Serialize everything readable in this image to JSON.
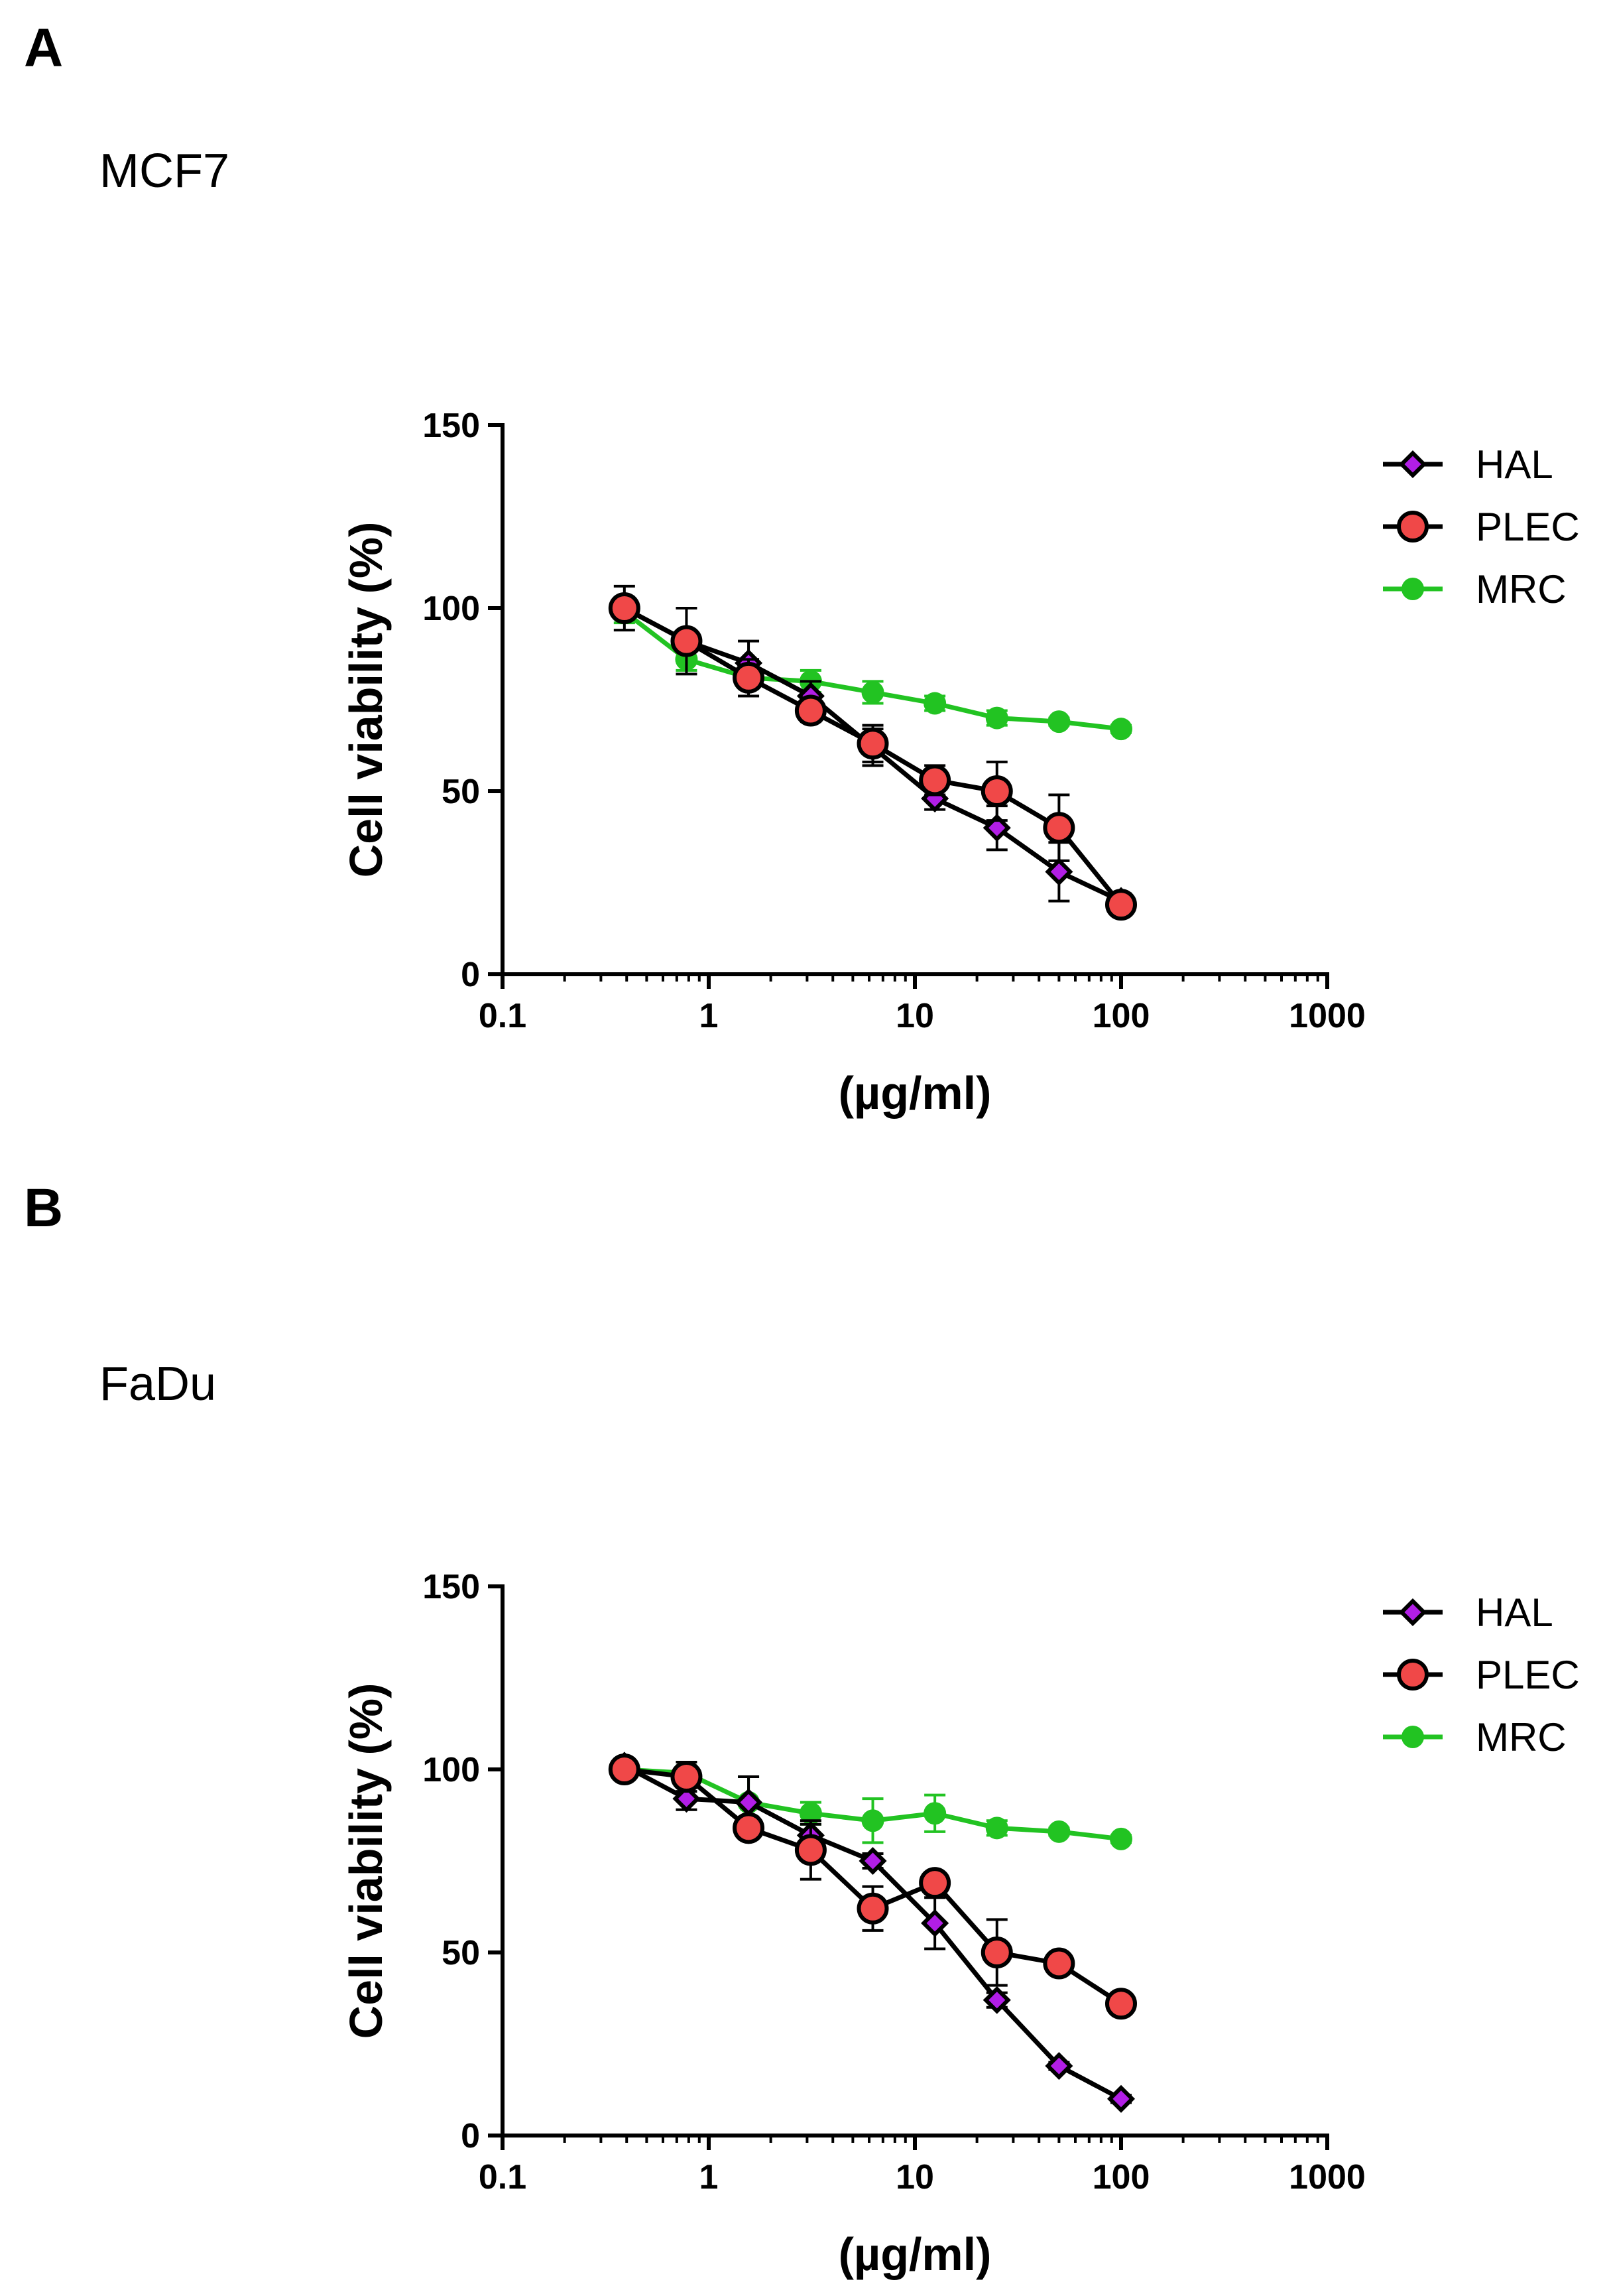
{
  "panels": [
    {
      "letter": "A",
      "cell_line": "MCF7"
    },
    {
      "letter": "B",
      "cell_line": "FaDu"
    }
  ],
  "chart_data": [
    {
      "type": "line",
      "xscale": "log",
      "xlim": [
        0.1,
        1000
      ],
      "ylim": [
        0,
        150
      ],
      "xticks": [
        "0.1",
        "1",
        "10",
        "100",
        "1000"
      ],
      "yticks": [
        "0",
        "50",
        "100",
        "150"
      ],
      "xlabel": "(µg/ml)",
      "ylabel": "Cell viability (%)",
      "legend_position": "top-right",
      "x": [
        0.39,
        0.78,
        1.56,
        3.125,
        6.25,
        12.5,
        25,
        50,
        100
      ],
      "series": [
        {
          "name": "HAL",
          "marker": "diamond",
          "line_color": "#000000",
          "fill_color": "#b21ee6",
          "values": [
            100,
            91,
            85,
            76,
            62,
            48,
            40,
            28,
            20
          ],
          "errors": [
            6,
            2,
            6,
            4,
            5,
            3,
            6,
            8,
            2
          ]
        },
        {
          "name": "PLEC",
          "marker": "circle",
          "line_color": "#000000",
          "fill_color": "#f04848",
          "values": [
            100,
            91,
            81,
            72,
            63,
            53,
            50,
            40,
            19
          ],
          "errors": [
            3,
            9,
            5,
            3,
            5,
            4,
            8,
            9,
            1
          ]
        },
        {
          "name": "MRC",
          "marker": "circle",
          "line_color": "#22c322",
          "fill_color": "#22c322",
          "values": [
            99,
            86,
            81,
            80,
            77,
            74,
            70,
            69,
            67
          ],
          "errors": [
            3,
            3,
            3,
            3,
            3,
            2,
            2,
            1,
            1
          ]
        }
      ]
    },
    {
      "type": "line",
      "xscale": "log",
      "xlim": [
        0.1,
        1000
      ],
      "ylim": [
        0,
        150
      ],
      "xticks": [
        "0.1",
        "1",
        "10",
        "100",
        "1000"
      ],
      "yticks": [
        "0",
        "50",
        "100",
        "150"
      ],
      "xlabel": "(µg/ml)",
      "ylabel": "Cell viability (%)",
      "legend_position": "top-right",
      "x": [
        0.39,
        0.78,
        1.56,
        3.125,
        6.25,
        12.5,
        25,
        50,
        100
      ],
      "series": [
        {
          "name": "HAL",
          "marker": "diamond",
          "line_color": "#000000",
          "fill_color": "#b21ee6",
          "values": [
            101,
            92,
            91,
            82,
            75,
            58,
            37,
            19,
            10
          ],
          "errors": [
            2,
            3,
            7,
            3,
            2,
            7,
            2,
            1,
            1
          ]
        },
        {
          "name": "PLEC",
          "marker": "circle",
          "line_color": "#000000",
          "fill_color": "#f04848",
          "values": [
            100,
            98,
            84,
            78,
            62,
            69,
            50,
            47,
            36
          ],
          "errors": [
            2,
            4,
            3,
            8,
            6,
            2,
            9,
            2,
            1
          ]
        },
        {
          "name": "MRC",
          "marker": "circle",
          "line_color": "#22c322",
          "fill_color": "#22c322",
          "values": [
            100,
            99,
            91,
            88,
            86,
            88,
            84,
            83,
            81
          ],
          "errors": [
            2,
            2,
            7,
            3,
            6,
            5,
            2,
            1,
            1
          ]
        }
      ]
    }
  ]
}
